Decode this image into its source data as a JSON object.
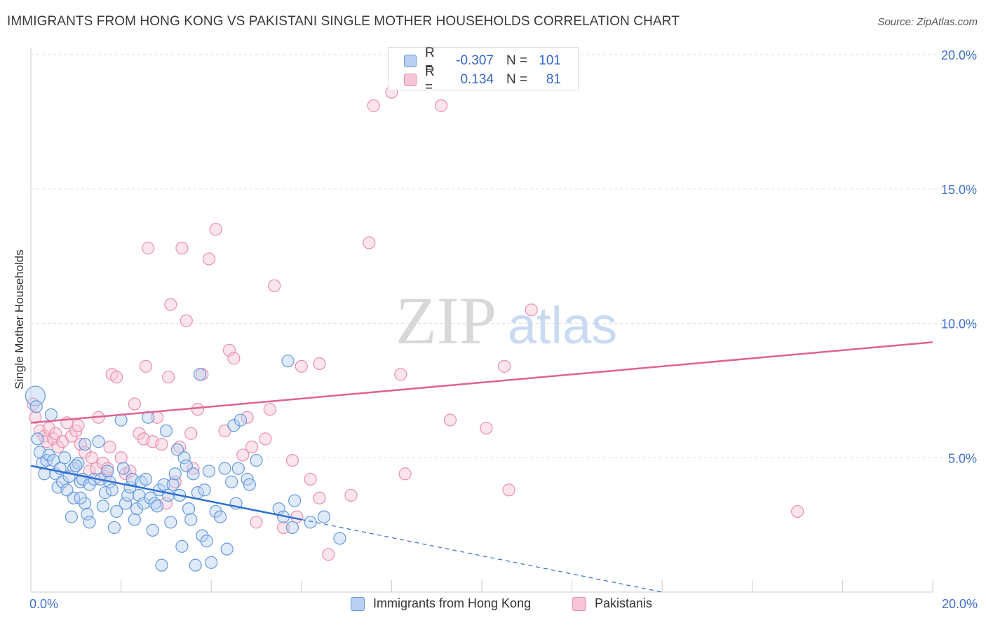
{
  "header": {
    "title": "IMMIGRANTS FROM HONG KONG VS PAKISTANI SINGLE MOTHER HOUSEHOLDS CORRELATION CHART",
    "source": "Source: ZipAtlas.com"
  },
  "watermark": {
    "zip": "ZIP",
    "atlas": "atlas"
  },
  "legend": {
    "rows": [
      {
        "r_label": "R =",
        "r_value": "-0.307",
        "n_label": "N =",
        "n_value": "101",
        "color": "#6699dd",
        "fill": "#b9d0f2"
      },
      {
        "r_label": "R =",
        "r_value": "0.134",
        "n_label": "N =",
        "n_value": "81",
        "color": "#e98fae",
        "fill": "#f6c6d6"
      }
    ]
  },
  "bottom_legend": {
    "items": [
      {
        "label": "Immigrants from Hong Kong"
      },
      {
        "label": "Pakistanis"
      }
    ]
  },
  "chart_data": {
    "type": "scatter",
    "title": "IMMIGRANTS FROM HONG KONG VS PAKISTANI SINGLE MOTHER HOUSEHOLDS CORRELATION CHART",
    "xlabel": "",
    "ylabel": "Single Mother Households",
    "xlim": [
      0,
      20
    ],
    "ylim": [
      0,
      20
    ],
    "x_tick_labels": [
      "0.0%",
      "20.0%"
    ],
    "y_tick_labels": [
      "5.0%",
      "10.0%",
      "15.0%",
      "20.0%"
    ],
    "y_ticks": [
      5,
      10,
      15,
      20
    ],
    "grid": true,
    "legend_position": "top-center",
    "colors": {
      "blue": "#6699dd",
      "blue_fill": "#b9d0f2",
      "pink": "#e98fae",
      "pink_fill": "#f6c6d6",
      "blue_line": "#2f6fd1",
      "pink_line": "#e0638e"
    },
    "series": [
      {
        "name": "Immigrants from Hong Kong",
        "trend": {
          "x": [
            0,
            6
          ],
          "y": [
            4.7,
            2.7
          ],
          "dashed_to": [
            14,
            0
          ]
        },
        "points": [
          [
            0.1,
            7.3
          ],
          [
            0.12,
            6.9
          ],
          [
            0.15,
            5.7
          ],
          [
            0.2,
            5.2
          ],
          [
            0.25,
            4.8
          ],
          [
            0.35,
            4.9
          ],
          [
            0.3,
            4.4
          ],
          [
            0.4,
            5.1
          ],
          [
            0.45,
            6.6
          ],
          [
            0.5,
            4.9
          ],
          [
            0.55,
            4.4
          ],
          [
            0.6,
            3.9
          ],
          [
            0.65,
            4.6
          ],
          [
            0.7,
            4.1
          ],
          [
            0.75,
            5.0
          ],
          [
            0.8,
            3.8
          ],
          [
            0.85,
            4.3
          ],
          [
            0.9,
            2.8
          ],
          [
            0.95,
            4.6
          ],
          [
            0.95,
            3.5
          ],
          [
            1.05,
            4.8
          ],
          [
            1.1,
            4.1
          ],
          [
            1.15,
            4.2
          ],
          [
            1.2,
            3.3
          ],
          [
            1.25,
            2.9
          ],
          [
            1.0,
            4.7
          ],
          [
            1.1,
            3.5
          ],
          [
            1.2,
            5.5
          ],
          [
            1.3,
            4.0
          ],
          [
            1.3,
            2.6
          ],
          [
            1.4,
            4.2
          ],
          [
            1.5,
            5.6
          ],
          [
            1.55,
            4.2
          ],
          [
            1.6,
            3.2
          ],
          [
            1.65,
            3.7
          ],
          [
            1.7,
            4.5
          ],
          [
            1.75,
            4.1
          ],
          [
            1.8,
            3.8
          ],
          [
            1.85,
            2.4
          ],
          [
            1.9,
            3.0
          ],
          [
            2.0,
            6.4
          ],
          [
            2.05,
            4.6
          ],
          [
            2.1,
            3.3
          ],
          [
            2.15,
            3.6
          ],
          [
            2.2,
            3.9
          ],
          [
            2.25,
            4.2
          ],
          [
            2.3,
            2.7
          ],
          [
            2.35,
            3.1
          ],
          [
            2.4,
            3.6
          ],
          [
            2.45,
            4.1
          ],
          [
            2.5,
            3.3
          ],
          [
            2.55,
            4.2
          ],
          [
            2.6,
            6.5
          ],
          [
            2.65,
            3.5
          ],
          [
            2.7,
            2.3
          ],
          [
            2.75,
            3.3
          ],
          [
            2.8,
            3.2
          ],
          [
            2.85,
            3.8
          ],
          [
            2.9,
            1.0
          ],
          [
            2.95,
            4.0
          ],
          [
            3.0,
            6.0
          ],
          [
            3.05,
            3.6
          ],
          [
            3.1,
            2.6
          ],
          [
            3.15,
            4.0
          ],
          [
            3.2,
            4.4
          ],
          [
            3.25,
            5.3
          ],
          [
            3.3,
            3.6
          ],
          [
            3.35,
            1.7
          ],
          [
            3.4,
            5.0
          ],
          [
            3.45,
            4.7
          ],
          [
            3.5,
            3.1
          ],
          [
            3.55,
            2.7
          ],
          [
            3.6,
            4.4
          ],
          [
            3.65,
            1.0
          ],
          [
            3.7,
            3.7
          ],
          [
            3.75,
            8.1
          ],
          [
            3.8,
            2.1
          ],
          [
            3.85,
            3.8
          ],
          [
            3.9,
            1.9
          ],
          [
            3.95,
            4.5
          ],
          [
            4.0,
            1.1
          ],
          [
            4.1,
            3.0
          ],
          [
            4.2,
            2.8
          ],
          [
            4.3,
            4.6
          ],
          [
            4.35,
            1.6
          ],
          [
            4.45,
            4.1
          ],
          [
            4.5,
            6.2
          ],
          [
            4.55,
            3.3
          ],
          [
            4.6,
            4.6
          ],
          [
            4.65,
            6.4
          ],
          [
            4.8,
            4.2
          ],
          [
            4.85,
            4.0
          ],
          [
            5.0,
            4.9
          ],
          [
            5.5,
            3.1
          ],
          [
            5.6,
            2.8
          ],
          [
            5.7,
            8.6
          ],
          [
            5.8,
            2.4
          ],
          [
            5.85,
            3.4
          ],
          [
            6.2,
            2.6
          ],
          [
            6.5,
            2.8
          ],
          [
            6.85,
            2.0
          ]
        ]
      },
      {
        "name": "Pakistanis",
        "trend": {
          "x": [
            0,
            20
          ],
          "y": [
            6.3,
            9.3
          ]
        },
        "points": [
          [
            0.05,
            7.0
          ],
          [
            0.1,
            6.5
          ],
          [
            0.2,
            6.0
          ],
          [
            0.3,
            5.8
          ],
          [
            0.35,
            5.6
          ],
          [
            0.4,
            6.1
          ],
          [
            0.5,
            5.7
          ],
          [
            0.55,
            5.9
          ],
          [
            0.6,
            5.4
          ],
          [
            0.7,
            5.6
          ],
          [
            0.8,
            6.3
          ],
          [
            0.9,
            5.8
          ],
          [
            1.0,
            6.0
          ],
          [
            1.05,
            6.2
          ],
          [
            1.1,
            5.5
          ],
          [
            1.2,
            5.2
          ],
          [
            1.3,
            4.5
          ],
          [
            1.35,
            5.0
          ],
          [
            1.45,
            4.6
          ],
          [
            1.5,
            6.5
          ],
          [
            1.6,
            4.8
          ],
          [
            1.65,
            4.3
          ],
          [
            1.7,
            4.6
          ],
          [
            1.75,
            5.4
          ],
          [
            1.8,
            8.1
          ],
          [
            1.9,
            8.0
          ],
          [
            2.0,
            5.0
          ],
          [
            2.1,
            4.4
          ],
          [
            2.2,
            4.5
          ],
          [
            2.3,
            7.0
          ],
          [
            2.4,
            5.9
          ],
          [
            2.5,
            5.7
          ],
          [
            2.55,
            8.4
          ],
          [
            2.6,
            12.8
          ],
          [
            2.7,
            5.6
          ],
          [
            2.8,
            6.5
          ],
          [
            2.9,
            5.5
          ],
          [
            3.0,
            3.3
          ],
          [
            3.05,
            8.0
          ],
          [
            3.1,
            10.7
          ],
          [
            3.2,
            4.1
          ],
          [
            3.3,
            5.4
          ],
          [
            3.35,
            12.8
          ],
          [
            3.45,
            10.1
          ],
          [
            3.55,
            5.9
          ],
          [
            3.6,
            4.6
          ],
          [
            3.7,
            6.8
          ],
          [
            3.8,
            8.1
          ],
          [
            3.95,
            12.4
          ],
          [
            4.1,
            13.5
          ],
          [
            4.3,
            6.0
          ],
          [
            4.4,
            9.0
          ],
          [
            4.5,
            8.7
          ],
          [
            4.7,
            5.1
          ],
          [
            4.8,
            6.5
          ],
          [
            4.9,
            5.4
          ],
          [
            5.0,
            2.6
          ],
          [
            5.2,
            5.7
          ],
          [
            5.3,
            6.8
          ],
          [
            5.4,
            11.4
          ],
          [
            5.6,
            2.4
          ],
          [
            5.8,
            4.9
          ],
          [
            5.9,
            2.8
          ],
          [
            6.0,
            8.4
          ],
          [
            6.2,
            4.2
          ],
          [
            6.4,
            3.5
          ],
          [
            6.6,
            1.4
          ],
          [
            7.1,
            3.6
          ],
          [
            7.5,
            13.0
          ],
          [
            7.6,
            18.1
          ],
          [
            8.0,
            18.6
          ],
          [
            8.2,
            8.1
          ],
          [
            8.3,
            4.4
          ],
          [
            9.1,
            18.1
          ],
          [
            9.3,
            6.4
          ],
          [
            10.1,
            6.1
          ],
          [
            10.5,
            8.4
          ],
          [
            10.6,
            3.8
          ],
          [
            11.1,
            10.5
          ],
          [
            17.0,
            3.0
          ],
          [
            6.4,
            8.5
          ]
        ]
      }
    ]
  }
}
